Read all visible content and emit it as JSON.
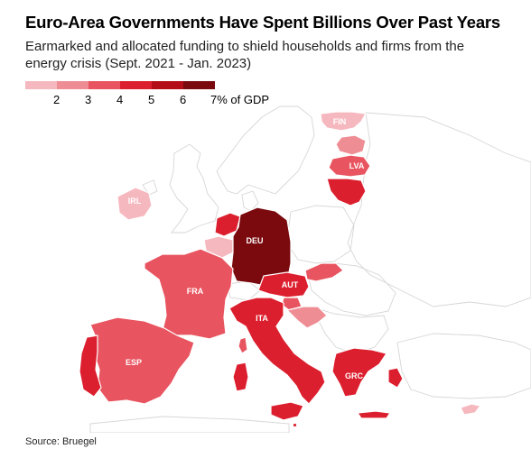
{
  "title": "Euro-Area Governments Have Spent Billions Over Past Years",
  "subtitle": "Earmarked and allocated funding to shield households and firms from the energy crisis (Sept. 2021 - Jan. 2023)",
  "legend": {
    "labels": [
      "2",
      "3",
      "4",
      "5",
      "6",
      "7% of GDP"
    ],
    "colors": [
      "#f6b8bf",
      "#ef8d95",
      "#e8545f",
      "#dc1f2e",
      "#b40d17",
      "#7a0a0e"
    ]
  },
  "countries": {
    "fin": {
      "label": "FIN",
      "level": 2
    },
    "est": {
      "label": "",
      "level": 3
    },
    "lva": {
      "label": "LVA",
      "level": 4
    },
    "ltu": {
      "label": "",
      "level": 5
    },
    "irl": {
      "label": "IRL",
      "level": 2
    },
    "nld": {
      "label": "",
      "level": 5
    },
    "bel": {
      "label": "",
      "level": 2
    },
    "deu": {
      "label": "DEU",
      "level": 7
    },
    "fra": {
      "label": "FRA",
      "level": 4
    },
    "esp": {
      "label": "ESP",
      "level": 4
    },
    "prt": {
      "label": "",
      "level": 5
    },
    "aut": {
      "label": "AUT",
      "level": 5
    },
    "svk": {
      "label": "",
      "level": 4
    },
    "svn": {
      "label": "",
      "level": 4
    },
    "hrv": {
      "label": "",
      "level": 3
    },
    "ita": {
      "label": "ITA",
      "level": 5
    },
    "grc": {
      "label": "GRC",
      "level": 5
    },
    "cyp": {
      "label": "",
      "level": 2
    },
    "mlt": {
      "label": "",
      "level": 5
    }
  },
  "source": "Source: Bruegel"
}
